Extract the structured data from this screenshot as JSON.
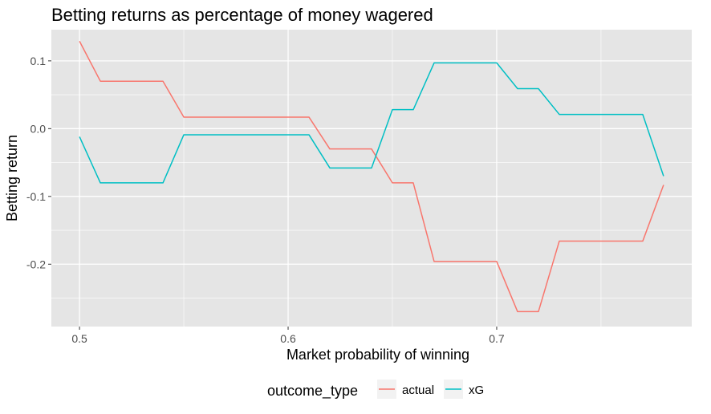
{
  "chart_data": {
    "type": "line",
    "title": "Betting returns as percentage of money wagered",
    "xlabel": "Market probability of winning",
    "ylabel": "Betting return",
    "xlim": [
      0.4865,
      0.7935
    ],
    "ylim": [
      -0.292,
      0.146
    ],
    "x_ticks": [
      0.5,
      0.6,
      0.7
    ],
    "x_tick_labels": [
      "0.5",
      "0.6",
      "0.7"
    ],
    "y_ticks": [
      0.1,
      0.0,
      -0.1,
      -0.2
    ],
    "y_tick_labels": [
      "0.1",
      "0.0",
      "-0.1",
      "-0.2"
    ],
    "grid": true,
    "legend_title": "outcome_type",
    "legend_position": "bottom",
    "colors": {
      "panel": "#e5e5e5",
      "grid": "#ffffff",
      "text": "#000000",
      "tick_text": "#4d4d4d"
    },
    "series": [
      {
        "name": "actual",
        "color": "#F8766D",
        "x": [
          0.5,
          0.51,
          0.54,
          0.55,
          0.61,
          0.62,
          0.64,
          0.65,
          0.66,
          0.67,
          0.7,
          0.71,
          0.72,
          0.73,
          0.77,
          0.78
        ],
        "y": [
          0.129,
          0.07,
          0.07,
          0.017,
          0.017,
          -0.03,
          -0.03,
          -0.08,
          -0.08,
          -0.196,
          -0.196,
          -0.27,
          -0.27,
          -0.166,
          -0.166,
          -0.083
        ]
      },
      {
        "name": "xG",
        "color": "#00BFC4",
        "x": [
          0.5,
          0.51,
          0.54,
          0.55,
          0.61,
          0.62,
          0.64,
          0.65,
          0.66,
          0.67,
          0.7,
          0.71,
          0.72,
          0.73,
          0.77,
          0.78
        ],
        "y": [
          -0.012,
          -0.08,
          -0.08,
          -0.009,
          -0.009,
          -0.058,
          -0.058,
          0.028,
          0.028,
          0.097,
          0.097,
          0.059,
          0.059,
          0.021,
          0.021,
          -0.07
        ]
      }
    ]
  }
}
